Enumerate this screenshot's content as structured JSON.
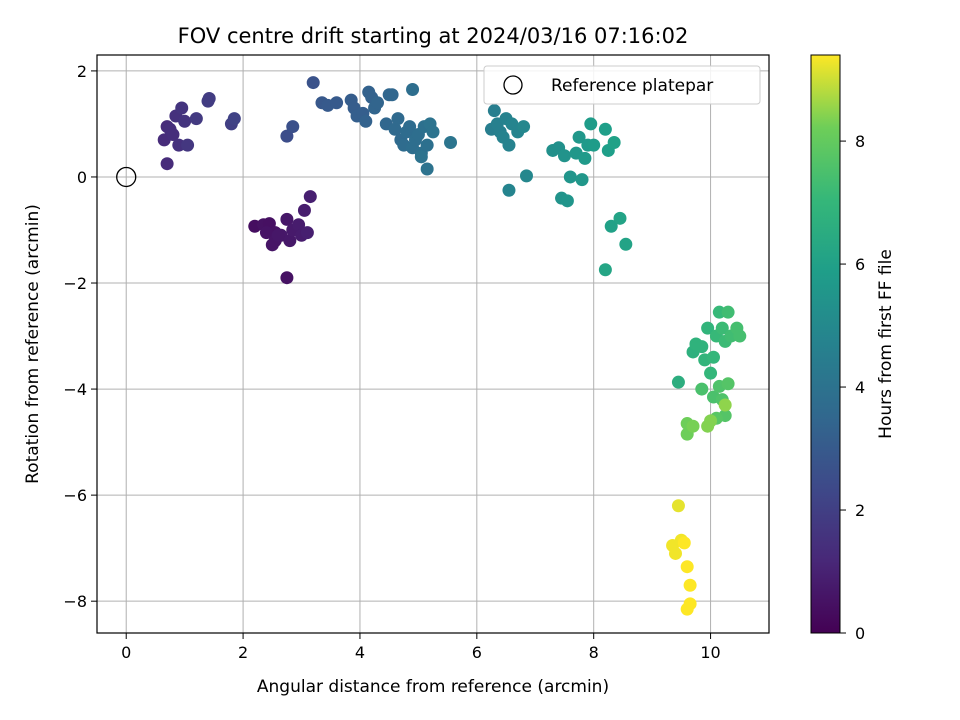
{
  "chart_data": {
    "type": "scatter",
    "title": "FOV centre drift starting at 2024/03/16 07:16:02",
    "xlabel": "Angular distance from reference (arcmin)",
    "ylabel": "Rotation from reference (arcmin)",
    "xlim": [
      -0.5,
      11.0
    ],
    "ylim": [
      -8.6,
      2.3
    ],
    "x_ticks": [
      0,
      2,
      4,
      6,
      8,
      10
    ],
    "y_ticks": [
      -8,
      -6,
      -4,
      -2,
      0,
      2
    ],
    "grid": true,
    "legend": {
      "position": "top-right",
      "entries": [
        "Reference platepar"
      ]
    },
    "reference_point": {
      "x": 0.0,
      "y": 0.0,
      "label": "Reference platepar"
    },
    "colorbar": {
      "label": "Hours from first FF file",
      "colormap": "viridis",
      "range": [
        0,
        9.4
      ],
      "ticks": [
        0,
        2,
        4,
        6,
        8
      ]
    },
    "points": [
      [
        2.2,
        -0.93,
        0.4
      ],
      [
        2.35,
        -0.9,
        0.5
      ],
      [
        2.45,
        -0.88,
        0.45
      ],
      [
        2.55,
        -1.05,
        0.5
      ],
      [
        2.4,
        -1.05,
        0.55
      ],
      [
        2.5,
        -1.28,
        0.6
      ],
      [
        2.55,
        -1.2,
        0.6
      ],
      [
        2.65,
        -1.1,
        0.7
      ],
      [
        2.75,
        -0.8,
        0.65
      ],
      [
        2.8,
        -1.2,
        0.7
      ],
      [
        2.85,
        -1.0,
        0.75
      ],
      [
        2.95,
        -0.9,
        0.8
      ],
      [
        3.0,
        -1.1,
        0.8
      ],
      [
        3.05,
        -0.63,
        0.85
      ],
      [
        3.1,
        -1.05,
        0.9
      ],
      [
        3.15,
        -0.37,
        0.9
      ],
      [
        2.75,
        -1.9,
        0.5
      ],
      [
        2.6,
        -1.1,
        0.65
      ],
      [
        0.65,
        0.7,
        1.3
      ],
      [
        0.7,
        0.95,
        1.3
      ],
      [
        0.75,
        0.9,
        1.4
      ],
      [
        0.8,
        0.8,
        1.4
      ],
      [
        0.85,
        1.15,
        1.5
      ],
      [
        0.9,
        0.6,
        1.5
      ],
      [
        0.95,
        1.3,
        1.6
      ],
      [
        1.0,
        1.05,
        1.6
      ],
      [
        1.05,
        0.6,
        1.7
      ],
      [
        0.7,
        0.25,
        1.3
      ],
      [
        1.2,
        1.1,
        1.8
      ],
      [
        1.4,
        1.43,
        1.9
      ],
      [
        1.42,
        1.48,
        1.9
      ],
      [
        1.8,
        1.0,
        2.0
      ],
      [
        1.85,
        1.1,
        2.1
      ],
      [
        2.75,
        0.77,
        2.5
      ],
      [
        2.85,
        0.95,
        2.6
      ],
      [
        3.2,
        1.78,
        2.7
      ],
      [
        3.35,
        1.4,
        2.9
      ],
      [
        3.45,
        1.35,
        3.0
      ],
      [
        3.6,
        1.4,
        3.0
      ],
      [
        3.85,
        1.45,
        3.1
      ],
      [
        3.9,
        1.3,
        3.1
      ],
      [
        3.95,
        1.15,
        3.2
      ],
      [
        4.05,
        1.2,
        3.2
      ],
      [
        4.1,
        1.05,
        3.3
      ],
      [
        4.15,
        1.6,
        3.3
      ],
      [
        4.2,
        1.5,
        3.3
      ],
      [
        4.25,
        1.3,
        3.4
      ],
      [
        4.3,
        1.4,
        3.4
      ],
      [
        4.45,
        1.0,
        3.5
      ],
      [
        4.5,
        1.55,
        3.5
      ],
      [
        4.55,
        1.55,
        3.5
      ],
      [
        4.6,
        0.9,
        3.6
      ],
      [
        4.65,
        1.1,
        3.6
      ],
      [
        4.7,
        0.7,
        3.6
      ],
      [
        4.75,
        0.6,
        3.7
      ],
      [
        4.8,
        0.85,
        3.7
      ],
      [
        4.85,
        0.95,
        3.7
      ],
      [
        4.9,
        0.55,
        3.8
      ],
      [
        4.95,
        0.7,
        3.8
      ],
      [
        4.9,
        1.65,
        3.8
      ],
      [
        5.0,
        0.8,
        3.8
      ],
      [
        5.05,
        0.45,
        3.9
      ],
      [
        5.1,
        0.95,
        3.9
      ],
      [
        5.15,
        0.6,
        3.9
      ],
      [
        5.2,
        1.0,
        4.0
      ],
      [
        5.15,
        0.15,
        4.0
      ],
      [
        5.25,
        0.85,
        4.0
      ],
      [
        5.55,
        0.65,
        4.1
      ],
      [
        5.05,
        0.38,
        4.0
      ],
      [
        6.25,
        0.9,
        4.5
      ],
      [
        6.3,
        1.25,
        4.5
      ],
      [
        6.35,
        1.0,
        4.6
      ],
      [
        6.4,
        0.85,
        4.6
      ],
      [
        6.45,
        0.75,
        4.7
      ],
      [
        6.5,
        1.1,
        4.7
      ],
      [
        6.55,
        0.6,
        4.7
      ],
      [
        6.6,
        1.0,
        4.8
      ],
      [
        6.7,
        0.85,
        4.8
      ],
      [
        6.8,
        0.95,
        4.9
      ],
      [
        6.55,
        -0.25,
        4.8
      ],
      [
        6.85,
        0.02,
        4.9
      ],
      [
        7.3,
        0.5,
        5.3
      ],
      [
        7.4,
        0.55,
        5.3
      ],
      [
        7.45,
        -0.4,
        5.4
      ],
      [
        7.5,
        0.4,
        5.4
      ],
      [
        7.55,
        -0.45,
        5.5
      ],
      [
        7.6,
        0.0,
        5.5
      ],
      [
        7.7,
        0.45,
        5.6
      ],
      [
        7.75,
        0.75,
        5.6
      ],
      [
        7.8,
        -0.05,
        5.6
      ],
      [
        7.85,
        0.35,
        5.7
      ],
      [
        7.9,
        0.6,
        5.7
      ],
      [
        7.95,
        1.0,
        5.8
      ],
      [
        8.0,
        0.6,
        5.8
      ],
      [
        8.2,
        0.9,
        5.9
      ],
      [
        8.25,
        0.5,
        5.9
      ],
      [
        8.35,
        0.65,
        6.0
      ],
      [
        8.3,
        -0.93,
        6.0
      ],
      [
        8.45,
        -0.78,
        6.1
      ],
      [
        8.55,
        -1.27,
        6.1
      ],
      [
        8.2,
        -1.75,
        6.2
      ],
      [
        9.45,
        -3.87,
        6.6
      ],
      [
        9.7,
        -3.3,
        6.7
      ],
      [
        9.75,
        -3.15,
        6.8
      ],
      [
        9.85,
        -3.2,
        6.8
      ],
      [
        9.9,
        -3.45,
        6.9
      ],
      [
        9.95,
        -2.85,
        6.9
      ],
      [
        10.0,
        -3.7,
        7.0
      ],
      [
        10.05,
        -3.4,
        7.0
      ],
      [
        10.1,
        -3.0,
        7.1
      ],
      [
        10.15,
        -2.55,
        7.1
      ],
      [
        10.2,
        -2.85,
        7.2
      ],
      [
        10.25,
        -3.1,
        7.2
      ],
      [
        10.3,
        -2.55,
        7.3
      ],
      [
        10.35,
        -3.0,
        7.3
      ],
      [
        10.45,
        -2.85,
        7.4
      ],
      [
        10.5,
        -3.0,
        7.4
      ],
      [
        9.85,
        -4.0,
        7.5
      ],
      [
        10.05,
        -4.15,
        7.5
      ],
      [
        10.15,
        -3.95,
        7.6
      ],
      [
        10.2,
        -4.2,
        7.6
      ],
      [
        10.25,
        -4.5,
        7.7
      ],
      [
        10.3,
        -3.9,
        7.7
      ],
      [
        10.1,
        -4.55,
        7.8
      ],
      [
        9.6,
        -4.65,
        8.2
      ],
      [
        9.6,
        -4.85,
        8.2
      ],
      [
        9.7,
        -4.7,
        8.3
      ],
      [
        9.95,
        -4.7,
        8.4
      ],
      [
        10.0,
        -4.6,
        8.4
      ],
      [
        10.25,
        -4.3,
        8.5
      ],
      [
        9.45,
        -6.2,
        9.2
      ],
      [
        9.35,
        -6.95,
        9.3
      ],
      [
        9.4,
        -7.1,
        9.3
      ],
      [
        9.5,
        -6.85,
        9.3
      ],
      [
        9.55,
        -6.9,
        9.4
      ],
      [
        9.6,
        -7.35,
        9.4
      ],
      [
        9.65,
        -7.7,
        9.4
      ],
      [
        9.65,
        -8.05,
        9.4
      ],
      [
        9.6,
        -8.15,
        9.4
      ]
    ]
  }
}
